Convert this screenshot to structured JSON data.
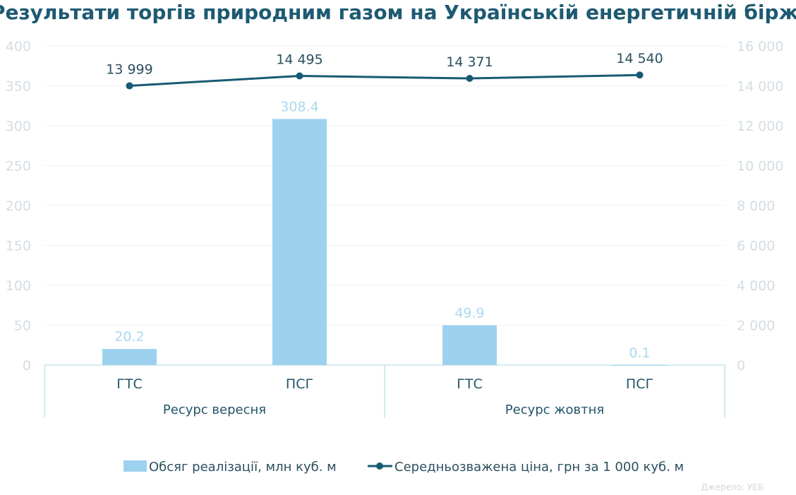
{
  "chart_data": {
    "type": "bar",
    "title": "Результати торгів природним газом на Українській енергетичній біржі",
    "categories": [
      "ГТС",
      "ПСГ",
      "ГТС",
      "ПСГ"
    ],
    "groups": [
      {
        "label": "Ресурс вересня",
        "span": 2
      },
      {
        "label": "Ресурс жовтня",
        "span": 2
      }
    ],
    "series": [
      {
        "name": "Обсяг реалізації, млн куб. м",
        "kind": "bar",
        "axis": "left",
        "values": [
          20.2,
          308.4,
          49.9,
          0.1
        ],
        "labels": [
          "20.2",
          "308.4",
          "49.9",
          "0.1"
        ],
        "color": "#9dd2ee"
      },
      {
        "name": "Середньозважена ціна, грн за 1 000 куб. м",
        "kind": "line",
        "axis": "right",
        "values": [
          13999,
          14495,
          14371,
          14540
        ],
        "labels": [
          "13 999",
          "14 495",
          "14 371",
          "14 540"
        ],
        "color": "#175a72"
      }
    ],
    "y_left": {
      "min": 0,
      "max": 400,
      "ticks": [
        "0",
        "50",
        "100",
        "150",
        "200",
        "250",
        "300",
        "350",
        "400"
      ]
    },
    "y_right": {
      "min": 0,
      "max": 16000,
      "ticks": [
        "0",
        "2 000",
        "4 000",
        "6 000",
        "8 000",
        "10 000",
        "12 000",
        "14 000",
        "16 000"
      ]
    },
    "grid": true,
    "legend_position": "bottom"
  },
  "source": "Джерело: УЕБ"
}
